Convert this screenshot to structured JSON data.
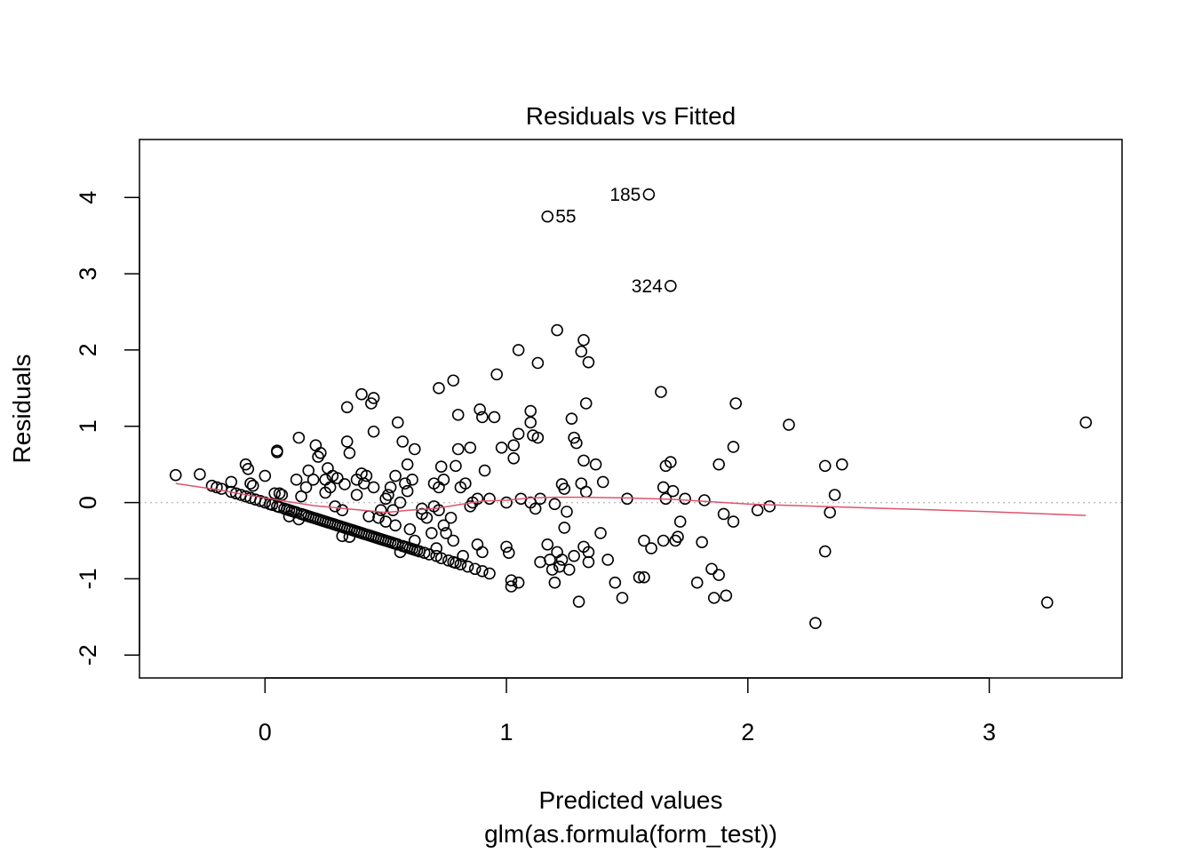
{
  "chart_data": {
    "type": "scatter",
    "title": "Residuals vs Fitted",
    "xlabel": "Predicted values",
    "xlabel_sub": "glm(as.formula(form_test))",
    "ylabel": "Residuals",
    "xlim": [
      -0.52,
      3.55
    ],
    "ylim": [
      -2.3,
      4.76
    ],
    "xticks": [
      0,
      1,
      2,
      3
    ],
    "yticks": [
      -2,
      -1,
      0,
      1,
      2,
      3,
      4
    ],
    "grid": false,
    "reference_line": {
      "y": 0,
      "style": "dotted",
      "color": "#bebebe"
    },
    "point_style": "open-circle",
    "smooth_color": "#df536b",
    "points": [
      [
        -0.37,
        0.36
      ],
      [
        -0.27,
        0.37
      ],
      [
        -0.22,
        0.22
      ],
      [
        -0.2,
        0.2
      ],
      [
        -0.18,
        0.18
      ],
      [
        -0.14,
        0.27
      ],
      [
        -0.14,
        0.14
      ],
      [
        -0.12,
        0.12
      ],
      [
        -0.1,
        0.1
      ],
      [
        -0.08,
        0.08
      ],
      [
        -0.08,
        0.5
      ],
      [
        -0.07,
        0.44
      ],
      [
        -0.06,
        0.25
      ],
      [
        -0.06,
        0.06
      ],
      [
        -0.05,
        0.22
      ],
      [
        -0.04,
        0.04
      ],
      [
        -0.02,
        0.02
      ],
      [
        0,
        0.35
      ],
      [
        0,
        0
      ],
      [
        0.02,
        -0.02
      ],
      [
        0.03,
        -0.03
      ],
      [
        0.04,
        0.12
      ],
      [
        0.05,
        -0.05
      ],
      [
        0.05,
        0.68
      ],
      [
        0.05,
        0.66
      ],
      [
        0.06,
        0.12
      ],
      [
        0.06,
        -0.06
      ],
      [
        0.07,
        0.1
      ],
      [
        0.08,
        -0.08
      ],
      [
        0.09,
        -0.09
      ],
      [
        0.1,
        -0.1
      ],
      [
        0.1,
        -0.18
      ],
      [
        0.11,
        -0.11
      ],
      [
        0.12,
        -0.12
      ],
      [
        0.13,
        0.3
      ],
      [
        0.13,
        -0.13
      ],
      [
        0.14,
        0.85
      ],
      [
        0.14,
        -0.22
      ],
      [
        0.15,
        -0.15
      ],
      [
        0.15,
        0.08
      ],
      [
        0.16,
        -0.16
      ],
      [
        0.17,
        -0.17
      ],
      [
        0.17,
        0.2
      ],
      [
        0.18,
        0.42
      ],
      [
        0.18,
        -0.18
      ],
      [
        0.19,
        -0.19
      ],
      [
        0.2,
        -0.2
      ],
      [
        0.2,
        0.3
      ],
      [
        0.21,
        0.75
      ],
      [
        0.21,
        -0.21
      ],
      [
        0.22,
        0.6
      ],
      [
        0.22,
        -0.22
      ],
      [
        0.23,
        0.65
      ],
      [
        0.23,
        -0.23
      ],
      [
        0.24,
        -0.24
      ],
      [
        0.25,
        0.3
      ],
      [
        0.25,
        0.13
      ],
      [
        0.25,
        -0.25
      ],
      [
        0.26,
        -0.26
      ],
      [
        0.26,
        0.45
      ],
      [
        0.27,
        0.2
      ],
      [
        0.27,
        -0.27
      ],
      [
        0.28,
        -0.28
      ],
      [
        0.28,
        0.35
      ],
      [
        0.29,
        -0.29
      ],
      [
        0.29,
        -0.05
      ],
      [
        0.3,
        0.32
      ],
      [
        0.3,
        -0.3
      ],
      [
        0.31,
        -0.31
      ],
      [
        0.32,
        -0.32
      ],
      [
        0.32,
        -0.1
      ],
      [
        0.32,
        -0.44
      ],
      [
        0.33,
        -0.33
      ],
      [
        0.33,
        0.24
      ],
      [
        0.34,
        -0.34
      ],
      [
        0.34,
        0.8
      ],
      [
        0.34,
        1.25
      ],
      [
        0.35,
        -0.35
      ],
      [
        0.35,
        0.65
      ],
      [
        0.35,
        -0.45
      ],
      [
        0.36,
        -0.36
      ],
      [
        0.37,
        -0.37
      ],
      [
        0.38,
        0.1
      ],
      [
        0.38,
        0.3
      ],
      [
        0.38,
        -0.38
      ],
      [
        0.39,
        -0.39
      ],
      [
        0.4,
        -0.4
      ],
      [
        0.4,
        0.38
      ],
      [
        0.4,
        1.42
      ],
      [
        0.41,
        0.25
      ],
      [
        0.41,
        -0.41
      ],
      [
        0.42,
        -0.42
      ],
      [
        0.42,
        0.35
      ],
      [
        0.43,
        -0.43
      ],
      [
        0.43,
        -0.18
      ],
      [
        0.44,
        1.3
      ],
      [
        0.44,
        -0.44
      ],
      [
        0.45,
        1.37
      ],
      [
        0.45,
        0.2
      ],
      [
        0.45,
        0.93
      ],
      [
        0.45,
        -0.45
      ],
      [
        0.46,
        -0.46
      ],
      [
        0.47,
        -0.47
      ],
      [
        0.47,
        -0.2
      ],
      [
        0.48,
        -0.1
      ],
      [
        0.48,
        -0.48
      ],
      [
        0.49,
        -0.49
      ],
      [
        0.5,
        0.05
      ],
      [
        0.5,
        -0.5
      ],
      [
        0.5,
        -0.25
      ],
      [
        0.51,
        0.1
      ],
      [
        0.51,
        -0.51
      ],
      [
        0.52,
        0.2
      ],
      [
        0.52,
        -0.52
      ],
      [
        0.53,
        -0.53
      ],
      [
        0.53,
        -0.1
      ],
      [
        0.54,
        0.35
      ],
      [
        0.54,
        -0.3
      ],
      [
        0.54,
        -0.54
      ],
      [
        0.55,
        1.05
      ],
      [
        0.55,
        -0.55
      ],
      [
        0.56,
        0.0
      ],
      [
        0.56,
        -0.65
      ],
      [
        0.57,
        0.8
      ],
      [
        0.57,
        -0.57
      ],
      [
        0.58,
        -0.58
      ],
      [
        0.58,
        0.25
      ],
      [
        0.59,
        0.15
      ],
      [
        0.59,
        0.5
      ],
      [
        0.59,
        -0.59
      ],
      [
        0.6,
        -0.6
      ],
      [
        0.6,
        -0.35
      ],
      [
        0.61,
        0.3
      ],
      [
        0.61,
        -0.61
      ],
      [
        0.62,
        -0.5
      ],
      [
        0.62,
        0.7
      ],
      [
        0.62,
        -0.62
      ],
      [
        0.63,
        -0.63
      ],
      [
        0.64,
        -0.64
      ],
      [
        0.65,
        -0.08
      ],
      [
        0.65,
        -0.15
      ],
      [
        0.66,
        -0.66
      ],
      [
        0.67,
        -0.2
      ],
      [
        0.68,
        -0.68
      ],
      [
        0.69,
        -0.4
      ],
      [
        0.7,
        0.25
      ],
      [
        0.7,
        -0.05
      ],
      [
        0.71,
        -0.6
      ],
      [
        0.71,
        -0.7
      ],
      [
        0.72,
        1.5
      ],
      [
        0.72,
        0.2
      ],
      [
        0.72,
        -0.1
      ],
      [
        0.73,
        0.47
      ],
      [
        0.73,
        -0.73
      ],
      [
        0.74,
        0.3
      ],
      [
        0.74,
        -0.3
      ],
      [
        0.75,
        -0.4
      ],
      [
        0.76,
        -0.76
      ],
      [
        0.77,
        -0.2
      ],
      [
        0.78,
        1.6
      ],
      [
        0.78,
        -0.5
      ],
      [
        0.78,
        -0.78
      ],
      [
        0.79,
        0.48
      ],
      [
        0.79,
        -0.79
      ],
      [
        0.8,
        1.15
      ],
      [
        0.8,
        0.7
      ],
      [
        0.81,
        -0.81
      ],
      [
        0.81,
        0.2
      ],
      [
        0.82,
        -0.7
      ],
      [
        0.83,
        0.25
      ],
      [
        0.84,
        -0.84
      ],
      [
        0.85,
        -0.05
      ],
      [
        0.85,
        0.72
      ],
      [
        0.86,
        0.0
      ],
      [
        0.87,
        -0.87
      ],
      [
        0.88,
        -0.55
      ],
      [
        0.88,
        0.05
      ],
      [
        0.89,
        1.22
      ],
      [
        0.9,
        1.12
      ],
      [
        0.9,
        -0.9
      ],
      [
        0.9,
        -0.65
      ],
      [
        0.91,
        0.42
      ],
      [
        0.93,
        0.05
      ],
      [
        0.93,
        -0.93
      ],
      [
        0.95,
        1.12
      ],
      [
        0.96,
        1.68
      ],
      [
        0.98,
        0.72
      ],
      [
        1.0,
        0.0
      ],
      [
        1.0,
        -0.58
      ],
      [
        1.01,
        -0.66
      ],
      [
        1.02,
        -1.1
      ],
      [
        1.02,
        -1.02
      ],
      [
        1.03,
        0.75
      ],
      [
        1.03,
        0.58
      ],
      [
        1.05,
        2.0
      ],
      [
        1.05,
        0.9
      ],
      [
        1.05,
        -1.05
      ],
      [
        1.06,
        0.05
      ],
      [
        1.1,
        0.0
      ],
      [
        1.1,
        1.2
      ],
      [
        1.1,
        1.05
      ],
      [
        1.11,
        0.88
      ],
      [
        1.12,
        -0.08
      ],
      [
        1.13,
        0.85
      ],
      [
        1.13,
        1.83
      ],
      [
        1.14,
        0.05
      ],
      [
        1.14,
        -0.78
      ],
      [
        1.17,
        -0.55
      ],
      [
        1.17,
        3.75
      ],
      [
        1.18,
        -0.75
      ],
      [
        1.19,
        -0.88
      ],
      [
        1.2,
        -0.02
      ],
      [
        1.2,
        -1.05
      ],
      [
        1.21,
        2.26
      ],
      [
        1.21,
        -0.65
      ],
      [
        1.22,
        -0.84
      ],
      [
        1.23,
        0.24
      ],
      [
        1.23,
        -0.75
      ],
      [
        1.24,
        -0.33
      ],
      [
        1.24,
        0.18
      ],
      [
        1.25,
        -0.12
      ],
      [
        1.26,
        -0.88
      ],
      [
        1.27,
        1.1
      ],
      [
        1.28,
        -0.7
      ],
      [
        1.28,
        0.85
      ],
      [
        1.29,
        0.78
      ],
      [
        1.3,
        -1.3
      ],
      [
        1.31,
        1.98
      ],
      [
        1.31,
        0.25
      ],
      [
        1.32,
        2.13
      ],
      [
        1.32,
        -0.58
      ],
      [
        1.32,
        0.55
      ],
      [
        1.33,
        1.3
      ],
      [
        1.33,
        0.14
      ],
      [
        1.34,
        1.84
      ],
      [
        1.34,
        -0.65
      ],
      [
        1.34,
        -0.78
      ],
      [
        1.37,
        0.5
      ],
      [
        1.39,
        -0.4
      ],
      [
        1.4,
        0.27
      ],
      [
        1.42,
        -0.75
      ],
      [
        1.45,
        -1.05
      ],
      [
        1.48,
        -1.25
      ],
      [
        1.5,
        0.05
      ],
      [
        1.55,
        -0.98
      ],
      [
        1.57,
        -0.98
      ],
      [
        1.57,
        -0.5
      ],
      [
        1.59,
        4.04
      ],
      [
        1.6,
        -0.6
      ],
      [
        1.64,
        1.45
      ],
      [
        1.65,
        0.2
      ],
      [
        1.65,
        -0.5
      ],
      [
        1.66,
        0.05
      ],
      [
        1.66,
        0.48
      ],
      [
        1.68,
        0.53
      ],
      [
        1.68,
        2.84
      ],
      [
        1.69,
        0.15
      ],
      [
        1.7,
        -0.5
      ],
      [
        1.71,
        -0.45
      ],
      [
        1.72,
        -0.25
      ],
      [
        1.74,
        0.05
      ],
      [
        1.79,
        -1.05
      ],
      [
        1.81,
        -0.52
      ],
      [
        1.82,
        0.03
      ],
      [
        1.85,
        -0.87
      ],
      [
        1.86,
        -1.25
      ],
      [
        1.88,
        -0.95
      ],
      [
        1.88,
        0.5
      ],
      [
        1.9,
        -0.15
      ],
      [
        1.91,
        -1.22
      ],
      [
        1.94,
        -0.25
      ],
      [
        1.94,
        0.73
      ],
      [
        1.95,
        1.3
      ],
      [
        2.04,
        -0.1
      ],
      [
        2.09,
        -0.05
      ],
      [
        2.17,
        1.02
      ],
      [
        2.28,
        -1.58
      ],
      [
        2.32,
        0.48
      ],
      [
        2.32,
        -0.64
      ],
      [
        2.34,
        -0.13
      ],
      [
        2.36,
        0.1
      ],
      [
        2.39,
        0.5
      ],
      [
        3.24,
        -1.31
      ],
      [
        3.4,
        1.05
      ]
    ],
    "outlier_labels": [
      {
        "text": "185",
        "x": 1.59,
        "y": 4.04,
        "side": "left"
      },
      {
        "text": "55",
        "x": 1.17,
        "y": 3.75,
        "side": "right"
      },
      {
        "text": "324",
        "x": 1.68,
        "y": 2.84,
        "side": "left"
      }
    ],
    "smooth_line": [
      [
        -0.37,
        0.25
      ],
      [
        -0.2,
        0.17
      ],
      [
        0.0,
        0.06
      ],
      [
        0.2,
        -0.04
      ],
      [
        0.4,
        -0.1
      ],
      [
        0.5,
        -0.13
      ],
      [
        0.6,
        -0.1
      ],
      [
        0.7,
        -0.08
      ],
      [
        0.8,
        -0.03
      ],
      [
        0.9,
        0.02
      ],
      [
        1.0,
        0.03
      ],
      [
        1.1,
        0.06
      ],
      [
        1.2,
        0.07
      ],
      [
        1.3,
        0.07
      ],
      [
        1.5,
        0.06
      ],
      [
        1.7,
        0.04
      ],
      [
        1.8,
        0.02
      ],
      [
        2.0,
        -0.02
      ],
      [
        2.2,
        -0.04
      ],
      [
        2.5,
        -0.07
      ],
      [
        3.0,
        -0.12
      ],
      [
        3.4,
        -0.17
      ]
    ]
  }
}
